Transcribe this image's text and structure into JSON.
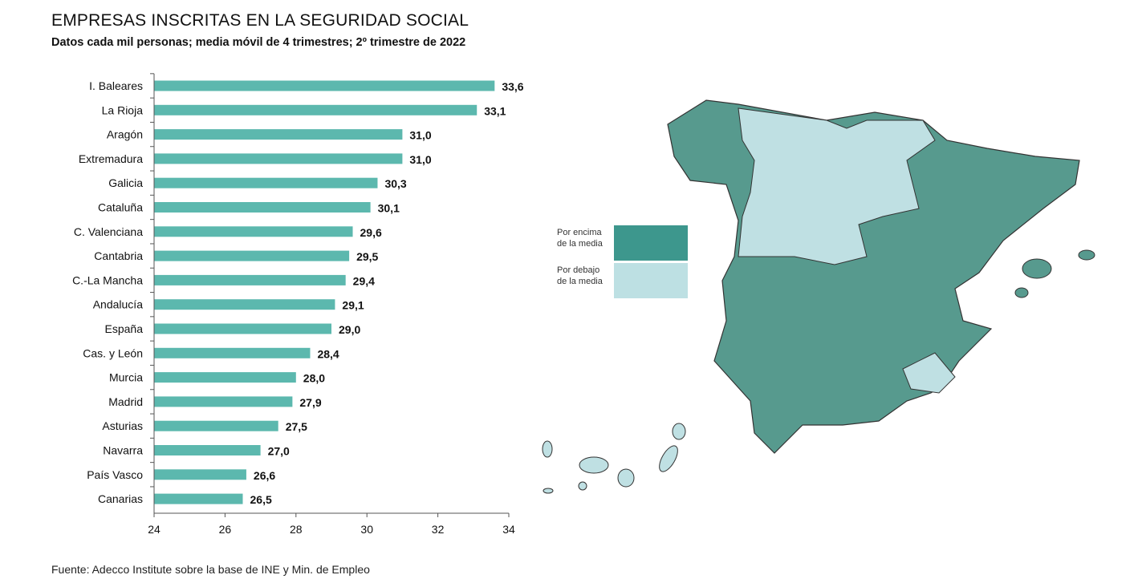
{
  "title": "EMPRESAS INSCRITAS EN LA SEGURIDAD SOCIAL",
  "subtitle": "Datos cada mil personas; media móvil de 4 trimestres; 2º trimestre de 2022",
  "source": "Fuente: Adecco Institute sobre la base de INE y Min. de Empleo",
  "colors": {
    "bar": "#5cb8ae",
    "above": "#3d978d",
    "below": "#bde0e3",
    "map_above": "#579a8e",
    "map_below": "#bfe0e3"
  },
  "legend": {
    "above": "Por encima de la media",
    "below": "Por debajo de la media"
  },
  "chart_data": {
    "type": "bar",
    "orientation": "horizontal",
    "title": "EMPRESAS INSCRITAS EN LA SEGURIDAD SOCIAL",
    "subtitle": "Datos cada mil personas; media móvil de 4 trimestres; 2º trimestre de 2022",
    "categories": [
      "I. Baleares",
      "La Rioja",
      "Aragón",
      "Extremadura",
      "Galicia",
      "Cataluña",
      "C. Valenciana",
      "Cantabria",
      "C.-La Mancha",
      "Andalucía",
      "España",
      "Cas. y León",
      "Murcia",
      "Madrid",
      "Asturias",
      "Navarra",
      "País Vasco",
      "Canarias"
    ],
    "values": [
      33.6,
      33.1,
      31.0,
      31.0,
      30.3,
      30.1,
      29.6,
      29.5,
      29.4,
      29.1,
      29.0,
      28.4,
      28.0,
      27.9,
      27.5,
      27.0,
      26.6,
      26.5
    ],
    "value_labels": [
      "33,6",
      "33,1",
      "31,0",
      "31,0",
      "30,3",
      "30,1",
      "29,6",
      "29,5",
      "29,4",
      "29,1",
      "29,0",
      "28,4",
      "28,0",
      "27,9",
      "27,5",
      "27,0",
      "26,6",
      "26,5"
    ],
    "xlim": [
      24,
      34
    ],
    "xticks": [
      "24",
      "26",
      "28",
      "30",
      "32",
      "34"
    ],
    "grid": false
  }
}
